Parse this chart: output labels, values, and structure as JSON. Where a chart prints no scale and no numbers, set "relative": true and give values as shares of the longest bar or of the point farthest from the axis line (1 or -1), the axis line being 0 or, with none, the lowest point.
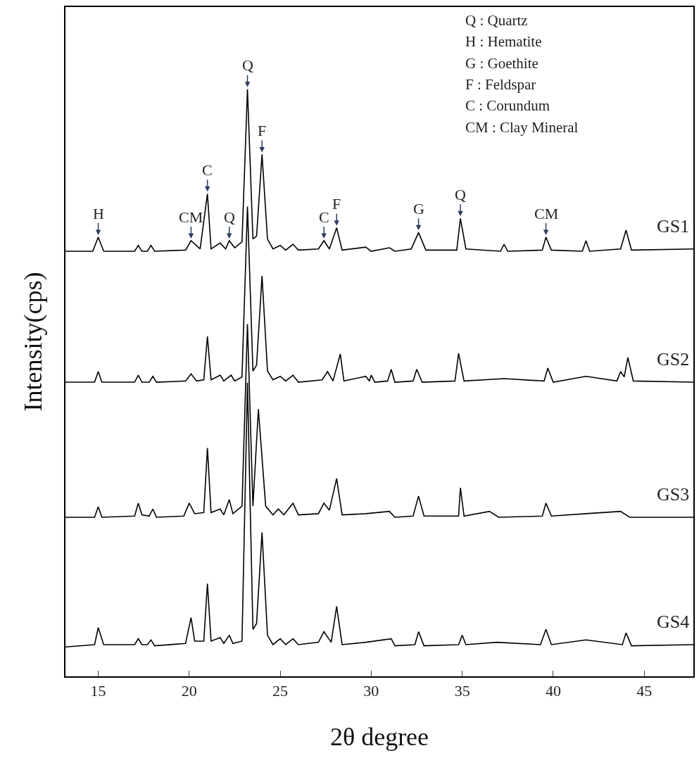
{
  "chart_data": {
    "type": "line",
    "relative": true,
    "xlabel": "2θ degree",
    "ylabel": "Intensity(cps)",
    "xlim": [
      13.2,
      47.7
    ],
    "xticks": [
      15,
      20,
      25,
      30,
      35,
      40,
      45
    ],
    "legend": false,
    "marker": "none",
    "line_style": "solid",
    "series": [
      {
        "name": "GS1",
        "color": "#000000",
        "x": [
          13.2,
          14.7,
          15.0,
          15.3,
          17.0,
          17.2,
          17.4,
          17.7,
          17.9,
          18.1,
          19.8,
          20.1,
          20.6,
          21.0,
          21.2,
          21.7,
          22.0,
          22.2,
          22.5,
          22.9,
          23.2,
          23.5,
          23.7,
          24.0,
          24.3,
          24.6,
          25.0,
          25.3,
          25.7,
          26.0,
          27.1,
          27.4,
          27.7,
          28.1,
          28.4,
          29.7,
          30.0,
          31.0,
          31.3,
          32.2,
          32.6,
          33.0,
          34.7,
          34.9,
          35.2,
          37.1,
          37.3,
          37.5,
          39.4,
          39.6,
          39.9,
          41.6,
          41.8,
          42.0,
          43.7,
          44.0,
          44.3,
          47.7
        ],
        "values": [
          0.724,
          0.724,
          0.748,
          0.724,
          0.724,
          0.734,
          0.724,
          0.724,
          0.734,
          0.724,
          0.726,
          0.742,
          0.728,
          0.822,
          0.728,
          0.738,
          0.728,
          0.742,
          0.73,
          0.74,
          1.0,
          0.745,
          0.75,
          0.889,
          0.745,
          0.728,
          0.734,
          0.726,
          0.736,
          0.726,
          0.728,
          0.742,
          0.728,
          0.764,
          0.726,
          0.731,
          0.724,
          0.73,
          0.724,
          0.728,
          0.756,
          0.726,
          0.726,
          0.78,
          0.728,
          0.724,
          0.736,
          0.724,
          0.726,
          0.748,
          0.726,
          0.724,
          0.742,
          0.724,
          0.728,
          0.76,
          0.726,
          0.728
        ]
      },
      {
        "name": "GS2",
        "color": "#000000",
        "x": [
          13.2,
          14.8,
          15.0,
          15.2,
          17.0,
          17.2,
          17.4,
          17.8,
          18.0,
          18.2,
          19.8,
          20.1,
          20.4,
          20.8,
          21.0,
          21.2,
          21.7,
          21.9,
          22.3,
          22.5,
          22.9,
          23.2,
          23.5,
          23.7,
          24.0,
          24.3,
          24.6,
          25.0,
          25.3,
          25.7,
          26.0,
          27.3,
          27.6,
          27.9,
          28.3,
          28.5,
          29.7,
          29.9,
          30.0,
          30.2,
          30.9,
          31.1,
          31.3,
          32.3,
          32.5,
          32.8,
          34.6,
          34.8,
          35.1,
          37.3,
          39.5,
          39.7,
          40.0,
          41.8,
          43.5,
          43.7,
          43.9,
          44.1,
          44.4,
          47.7
        ],
        "values": [
          0.501,
          0.501,
          0.519,
          0.501,
          0.501,
          0.513,
          0.501,
          0.501,
          0.511,
          0.501,
          0.503,
          0.515,
          0.503,
          0.505,
          0.579,
          0.505,
          0.513,
          0.503,
          0.513,
          0.503,
          0.51,
          0.8,
          0.52,
          0.53,
          0.682,
          0.52,
          0.505,
          0.511,
          0.503,
          0.513,
          0.501,
          0.505,
          0.519,
          0.503,
          0.549,
          0.503,
          0.511,
          0.503,
          0.513,
          0.501,
          0.503,
          0.523,
          0.501,
          0.503,
          0.523,
          0.501,
          0.503,
          0.55,
          0.503,
          0.507,
          0.503,
          0.525,
          0.501,
          0.511,
          0.503,
          0.519,
          0.51,
          0.543,
          0.503,
          0.501
        ]
      },
      {
        "name": "GS3",
        "color": "#000000",
        "x": [
          13.2,
          14.8,
          15.0,
          15.2,
          17.0,
          17.2,
          17.4,
          17.8,
          18.0,
          18.2,
          19.7,
          20.0,
          20.3,
          20.8,
          21.0,
          21.2,
          21.7,
          21.9,
          22.2,
          22.4,
          22.9,
          23.2,
          23.5,
          23.8,
          24.2,
          24.6,
          24.9,
          25.2,
          25.7,
          26.0,
          27.1,
          27.4,
          27.7,
          28.1,
          28.4,
          29.7,
          31.0,
          31.3,
          32.3,
          32.6,
          32.9,
          34.8,
          34.9,
          35.1,
          36.5,
          37.0,
          39.4,
          39.6,
          39.9,
          41.8,
          43.7,
          44.2,
          47.7
        ],
        "values": [
          0.271,
          0.271,
          0.289,
          0.271,
          0.273,
          0.295,
          0.275,
          0.273,
          0.285,
          0.271,
          0.273,
          0.295,
          0.277,
          0.279,
          0.389,
          0.279,
          0.285,
          0.275,
          0.301,
          0.277,
          0.29,
          0.6,
          0.29,
          0.455,
          0.29,
          0.275,
          0.285,
          0.275,
          0.295,
          0.275,
          0.277,
          0.295,
          0.283,
          0.337,
          0.275,
          0.277,
          0.281,
          0.271,
          0.273,
          0.307,
          0.273,
          0.273,
          0.321,
          0.273,
          0.281,
          0.271,
          0.273,
          0.295,
          0.273,
          0.277,
          0.281,
          0.271,
          0.271
        ]
      },
      {
        "name": "GS4",
        "color": "#000000",
        "x": [
          13.2,
          14.8,
          15.0,
          15.3,
          17.0,
          17.2,
          17.4,
          17.7,
          17.9,
          18.1,
          19.8,
          20.1,
          20.3,
          20.8,
          21.0,
          21.2,
          21.7,
          21.9,
          22.2,
          22.4,
          22.9,
          23.2,
          23.5,
          23.7,
          24.0,
          24.3,
          24.6,
          25.0,
          25.3,
          25.7,
          26.0,
          27.1,
          27.4,
          27.8,
          28.1,
          28.4,
          29.7,
          31.1,
          31.3,
          32.4,
          32.6,
          32.9,
          34.8,
          35.0,
          35.2,
          36.9,
          39.3,
          39.6,
          39.9,
          41.8,
          43.8,
          44.0,
          44.3,
          47.7
        ],
        "values": [
          0.05,
          0.054,
          0.083,
          0.054,
          0.054,
          0.064,
          0.054,
          0.054,
          0.062,
          0.052,
          0.056,
          0.1,
          0.06,
          0.06,
          0.158,
          0.06,
          0.066,
          0.056,
          0.07,
          0.056,
          0.06,
          0.5,
          0.08,
          0.09,
          0.245,
          0.07,
          0.054,
          0.064,
          0.054,
          0.064,
          0.054,
          0.058,
          0.076,
          0.058,
          0.119,
          0.054,
          0.058,
          0.064,
          0.052,
          0.054,
          0.076,
          0.052,
          0.054,
          0.07,
          0.054,
          0.058,
          0.054,
          0.08,
          0.054,
          0.062,
          0.054,
          0.074,
          0.052,
          0.054
        ]
      }
    ],
    "annotations": [
      {
        "text": "H",
        "x": 15.0,
        "y": 0.748
      },
      {
        "text": "CM",
        "x": 20.1,
        "y": 0.742
      },
      {
        "text": "C",
        "x": 21.0,
        "y": 0.822
      },
      {
        "text": "Q",
        "x": 22.2,
        "y": 0.742
      },
      {
        "text": "Q",
        "x": 23.2,
        "y": 1.0
      },
      {
        "text": "F",
        "x": 24.0,
        "y": 0.889
      },
      {
        "text": "C",
        "x": 27.4,
        "y": 0.742
      },
      {
        "text": "F",
        "x": 28.1,
        "y": 0.764
      },
      {
        "text": "G",
        "x": 32.6,
        "y": 0.756
      },
      {
        "text": "Q",
        "x": 34.9,
        "y": 0.78
      },
      {
        "text": "CM",
        "x": 39.6,
        "y": 0.748
      },
      "Q : Quartz",
      "H : Hematite",
      "G : Goethite",
      "F : Feldspar",
      "C : Corundum",
      "CM : Clay Mineral"
    ]
  }
}
